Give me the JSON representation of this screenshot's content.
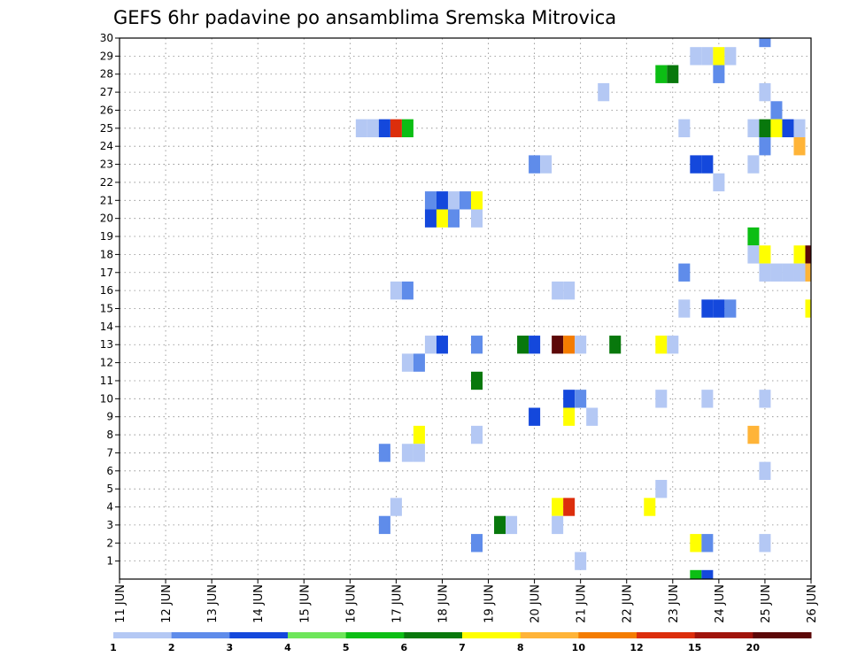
{
  "chart_data": {
    "type": "heatmap",
    "title": "GEFS 6hr padavine po ansamblima Sremska Mitrovica",
    "xlabel": "",
    "ylabel": "",
    "x_ticks": [
      "11 JUN",
      "12 JUN",
      "13 JUN",
      "14 JUN",
      "15 JUN",
      "16 JUN",
      "17 JUN",
      "18 JUN",
      "19 JUN",
      "20 JUN",
      "21 JUN",
      "22 JUN",
      "23 JUN",
      "24 JUN",
      "25 JUN",
      "26 JUN"
    ],
    "y_ticks": [
      "1",
      "2",
      "3",
      "4",
      "5",
      "6",
      "7",
      "8",
      "9",
      "10",
      "11",
      "12",
      "13",
      "14",
      "15",
      "16",
      "17",
      "18",
      "19",
      "20",
      "21",
      "22",
      "23",
      "24",
      "25",
      "26",
      "27",
      "28",
      "29",
      "30"
    ],
    "xlim": [
      0,
      60
    ],
    "ylim": [
      0,
      30
    ],
    "x_unit": "6-hour steps from 11 JUN 00z",
    "grid": true,
    "colorbar": {
      "levels": [
        "1",
        "2",
        "3",
        "4",
        "5",
        "6",
        "7",
        "8",
        "10",
        "12",
        "15",
        "20"
      ],
      "colors": [
        "#b4c8f4",
        "#5f8cea",
        "#1448dc",
        "#6ee65a",
        "#0cbe14",
        "#08780c",
        "#ffff00",
        "#ffb438",
        "#f47c00",
        "#dc2e0c",
        "#a0140c",
        "#5c0808"
      ]
    },
    "cells": [
      [
        56,
        30,
        2
      ],
      [
        50,
        29,
        1
      ],
      [
        51,
        29,
        1
      ],
      [
        52,
        29,
        7
      ],
      [
        53,
        29,
        1
      ],
      [
        47,
        28,
        5
      ],
      [
        48,
        28,
        6
      ],
      [
        52,
        28,
        2
      ],
      [
        42,
        27,
        1
      ],
      [
        56,
        27,
        1
      ],
      [
        57,
        26,
        2
      ],
      [
        21,
        25,
        1
      ],
      [
        22,
        25,
        1
      ],
      [
        23,
        25,
        3
      ],
      [
        24,
        25,
        10
      ],
      [
        25,
        25,
        5
      ],
      [
        49,
        25,
        1
      ],
      [
        55,
        25,
        1
      ],
      [
        56,
        25,
        6
      ],
      [
        57,
        25,
        7
      ],
      [
        58,
        25,
        3
      ],
      [
        59,
        25,
        1
      ],
      [
        56,
        24,
        2
      ],
      [
        59,
        24,
        8
      ],
      [
        36,
        23,
        2
      ],
      [
        37,
        23,
        1
      ],
      [
        50,
        23,
        3
      ],
      [
        51,
        23,
        3
      ],
      [
        55,
        23,
        1
      ],
      [
        52,
        22,
        1
      ],
      [
        27,
        21,
        2
      ],
      [
        28,
        21,
        3
      ],
      [
        29,
        21,
        1
      ],
      [
        30,
        21,
        2
      ],
      [
        31,
        21,
        7
      ],
      [
        27,
        20,
        3
      ],
      [
        28,
        20,
        7
      ],
      [
        29,
        20,
        2
      ],
      [
        31,
        20,
        1
      ],
      [
        55,
        19,
        5
      ],
      [
        55,
        18,
        1
      ],
      [
        56,
        18,
        7
      ],
      [
        59,
        18,
        7
      ],
      [
        60,
        18,
        12
      ],
      [
        49,
        17,
        2
      ],
      [
        56,
        17,
        1
      ],
      [
        57,
        17,
        1
      ],
      [
        58,
        17,
        1
      ],
      [
        59,
        17,
        1
      ],
      [
        60,
        17,
        8
      ],
      [
        24,
        16,
        1
      ],
      [
        25,
        16,
        2
      ],
      [
        38,
        16,
        1
      ],
      [
        39,
        16,
        1
      ],
      [
        49,
        15,
        1
      ],
      [
        51,
        15,
        3
      ],
      [
        52,
        15,
        3
      ],
      [
        53,
        15,
        2
      ],
      [
        60,
        15,
        7
      ],
      [
        27,
        13,
        1
      ],
      [
        28,
        13,
        3
      ],
      [
        31,
        13,
        2
      ],
      [
        35,
        13,
        6
      ],
      [
        36,
        13,
        3
      ],
      [
        38,
        13,
        12
      ],
      [
        39,
        13,
        9
      ],
      [
        40,
        13,
        1
      ],
      [
        43,
        13,
        6
      ],
      [
        47,
        13,
        7
      ],
      [
        48,
        13,
        1
      ],
      [
        25,
        12,
        1
      ],
      [
        26,
        12,
        2
      ],
      [
        31,
        11,
        6
      ],
      [
        39,
        10,
        3
      ],
      [
        40,
        10,
        2
      ],
      [
        47,
        10,
        1
      ],
      [
        51,
        10,
        1
      ],
      [
        56,
        10,
        1
      ],
      [
        36,
        9,
        3
      ],
      [
        39,
        9,
        7
      ],
      [
        41,
        9,
        1
      ],
      [
        26,
        8,
        7
      ],
      [
        31,
        8,
        1
      ],
      [
        55,
        8,
        8
      ],
      [
        23,
        7,
        2
      ],
      [
        25,
        7,
        1
      ],
      [
        26,
        7,
        1
      ],
      [
        56,
        6,
        1
      ],
      [
        47,
        5,
        1
      ],
      [
        24,
        4,
        1
      ],
      [
        38,
        4,
        7
      ],
      [
        39,
        4,
        10
      ],
      [
        46,
        4,
        7
      ],
      [
        23,
        3,
        2
      ],
      [
        33,
        3,
        6
      ],
      [
        34,
        3,
        1
      ],
      [
        38,
        3,
        1
      ],
      [
        31,
        2,
        2
      ],
      [
        50,
        2,
        7
      ],
      [
        51,
        2,
        2
      ],
      [
        56,
        2,
        1
      ],
      [
        40,
        1,
        1
      ],
      [
        50,
        0,
        5
      ],
      [
        51,
        0,
        3
      ]
    ]
  }
}
